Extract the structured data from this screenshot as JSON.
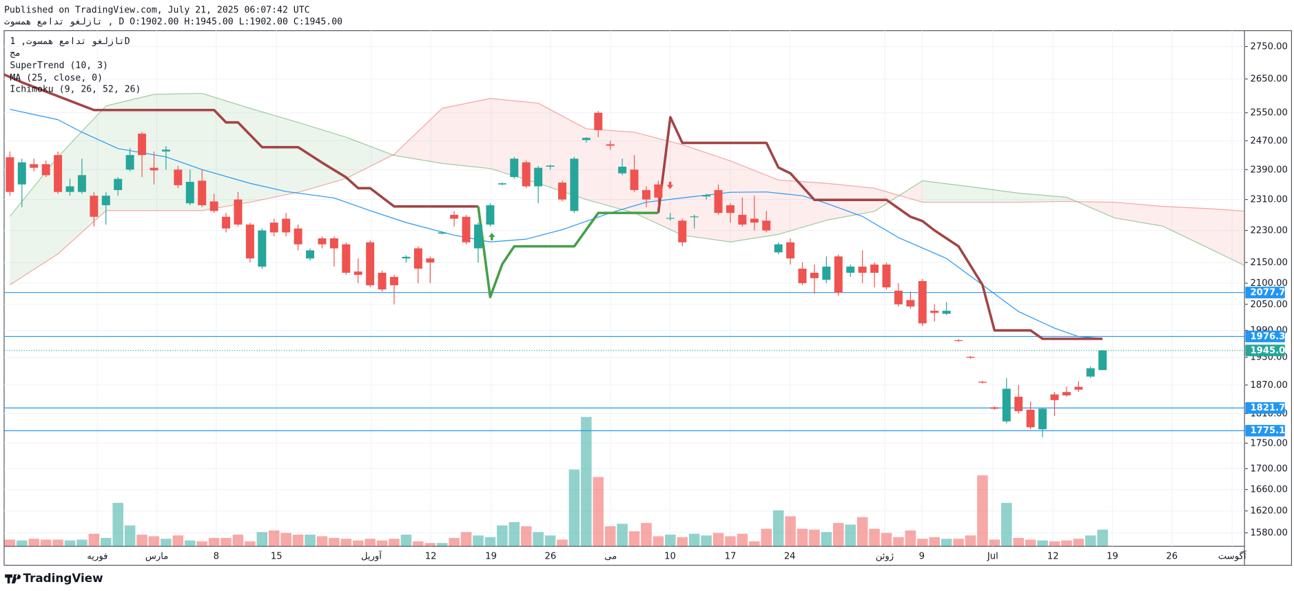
{
  "header": {
    "published": "Published on TradingView.com, July 21, 2025 06:07:42 UTC",
    "quote": "تازلغو تدامع همسوت , D O:1902.00 H:1945.00 L:1902.00 C:1945.00"
  },
  "chart_data": {
    "type": "candlestick",
    "symbol": "تازلغو تدامع همسوت, 1D",
    "log_scale": true,
    "grid": true,
    "ylim": [
      1556,
      2800
    ],
    "yticks": [
      {
        "value": 2750,
        "label": "2750.00"
      },
      {
        "value": 2650,
        "label": "2650.00"
      },
      {
        "value": 2550,
        "label": "2550.00"
      },
      {
        "value": 2470,
        "label": "2470.00"
      },
      {
        "value": 2390,
        "label": "2390.00"
      },
      {
        "value": 2310,
        "label": "2310.00"
      },
      {
        "value": 2230,
        "label": "2230.00"
      },
      {
        "value": 2150,
        "label": "2150.00"
      },
      {
        "value": 2100,
        "label": "2100.00"
      },
      {
        "value": 2050,
        "label": "2050.00"
      },
      {
        "value": 1990,
        "label": "1990.00"
      },
      {
        "value": 1930,
        "label": "1930.00"
      },
      {
        "value": 1870,
        "label": "1870.00"
      },
      {
        "value": 1810,
        "label": "1810.00"
      },
      {
        "value": 1750,
        "label": "1750.00"
      },
      {
        "value": 1700,
        "label": "1700.00"
      },
      {
        "value": 1660,
        "label": "1660.00"
      },
      {
        "value": 1620,
        "label": "1620.00"
      },
      {
        "value": 1580,
        "label": "1580.00"
      }
    ],
    "x_labels": [
      "فوریه",
      "مارس",
      "8",
      "15",
      "آوریل",
      "12",
      "19",
      "26",
      "می",
      "10",
      "17",
      "24",
      "ژوئن",
      "9",
      "Jul",
      "12",
      "19",
      "26",
      "آگوست"
    ],
    "up_color": "#26a69a",
    "down_color": "#ef5350",
    "ohlc": [
      [
        2424,
        2440,
        2320,
        2330
      ],
      [
        2350,
        2420,
        2290,
        2410
      ],
      [
        2405,
        2420,
        2385,
        2395
      ],
      [
        2405,
        2415,
        2370,
        2375
      ],
      [
        2430,
        2440,
        2325,
        2330
      ],
      [
        2330,
        2365,
        2320,
        2345
      ],
      [
        2330,
        2420,
        2325,
        2375
      ],
      [
        2320,
        2330,
        2240,
        2265
      ],
      [
        2295,
        2330,
        2245,
        2320
      ],
      [
        2335,
        2370,
        2320,
        2365
      ],
      [
        2390,
        2450,
        2385,
        2430
      ],
      [
        2490,
        2495,
        2370,
        2430
      ],
      [
        2395,
        2440,
        2350,
        2388
      ],
      [
        2440,
        2455,
        2390,
        2445
      ],
      [
        2390,
        2400,
        2340,
        2348
      ],
      [
        2300,
        2390,
        2295,
        2357
      ],
      [
        2360,
        2390,
        2290,
        2295
      ],
      [
        2305,
        2325,
        2275,
        2280
      ],
      [
        2265,
        2275,
        2225,
        2235
      ],
      [
        2310,
        2330,
        2240,
        2245
      ],
      [
        2245,
        2250,
        2150,
        2160
      ],
      [
        2140,
        2235,
        2135,
        2230
      ],
      [
        2250,
        2260,
        2215,
        2225
      ],
      [
        2260,
        2275,
        2215,
        2225
      ],
      [
        2235,
        2245,
        2180,
        2195
      ],
      [
        2160,
        2185,
        2155,
        2180
      ],
      [
        2210,
        2215,
        2185,
        2195
      ],
      [
        2210,
        2215,
        2140,
        2185
      ],
      [
        2195,
        2200,
        2120,
        2125
      ],
      [
        2128,
        2160,
        2100,
        2120
      ],
      [
        2200,
        2205,
        2090,
        2095
      ],
      [
        2125,
        2130,
        2080,
        2085
      ],
      [
        2115,
        2120,
        2050,
        2095
      ],
      [
        2160,
        2168,
        2150,
        2164
      ],
      [
        2185,
        2190,
        2100,
        2135
      ],
      [
        2160,
        2165,
        2100,
        2150
      ],
      [
        2222,
        2228,
        2220,
        2225
      ],
      [
        2270,
        2280,
        2240,
        2260
      ],
      [
        2265,
        2270,
        2195,
        2200
      ],
      [
        2185,
        2250,
        2150,
        2245
      ],
      [
        2245,
        2300,
        2240,
        2295
      ],
      [
        2350,
        2355,
        2348,
        2353
      ],
      [
        2370,
        2425,
        2365,
        2420
      ],
      [
        2410,
        2415,
        2340,
        2345
      ],
      [
        2345,
        2400,
        2300,
        2395
      ],
      [
        2398,
        2403,
        2390,
        2401
      ],
      [
        2355,
        2360,
        2305,
        2310
      ],
      [
        2280,
        2425,
        2275,
        2420
      ],
      [
        2472,
        2480,
        2465,
        2478
      ],
      [
        2550,
        2555,
        2480,
        2500
      ],
      [
        2460,
        2470,
        2445,
        2456
      ],
      [
        2380,
        2420,
        2375,
        2398
      ],
      [
        2390,
        2430,
        2330,
        2335
      ],
      [
        2335,
        2345,
        2290,
        2310
      ],
      [
        2350,
        2360,
        2290,
        2315
      ],
      [
        2260,
        2275,
        2255,
        2262
      ],
      [
        2255,
        2260,
        2190,
        2200
      ],
      [
        2264,
        2270,
        2235,
        2266
      ],
      [
        2318,
        2325,
        2310,
        2322
      ],
      [
        2335,
        2350,
        2270,
        2275
      ],
      [
        2295,
        2300,
        2250,
        2275
      ],
      [
        2270,
        2315,
        2240,
        2245
      ],
      [
        2260,
        2320,
        2230,
        2250
      ],
      [
        2255,
        2280,
        2225,
        2230
      ],
      [
        2175,
        2200,
        2170,
        2195
      ],
      [
        2200,
        2210,
        2145,
        2160
      ],
      [
        2135,
        2150,
        2095,
        2100
      ],
      [
        2125,
        2145,
        2075,
        2112
      ],
      [
        2108,
        2165,
        2100,
        2140
      ],
      [
        2165,
        2170,
        2070,
        2077
      ],
      [
        2125,
        2145,
        2115,
        2140
      ],
      [
        2140,
        2180,
        2100,
        2125
      ],
      [
        2145,
        2150,
        2090,
        2125
      ],
      [
        2145,
        2150,
        2085,
        2090
      ],
      [
        2082,
        2100,
        2045,
        2050
      ],
      [
        2060,
        2080,
        2040,
        2045
      ],
      [
        2105,
        2110,
        2000,
        2006
      ],
      [
        2035,
        2050,
        2010,
        2030
      ],
      [
        2028,
        2055,
        2025,
        2035
      ],
      [
        1968,
        1970,
        1964,
        1966
      ],
      [
        1931,
        1933,
        1927,
        1929
      ],
      [
        1877,
        1879,
        1873,
        1875
      ],
      [
        1823,
        1825,
        1818,
        1820
      ],
      [
        1794,
        1885,
        1790,
        1862
      ],
      [
        1845,
        1870,
        1810,
        1815
      ],
      [
        1818,
        1835,
        1778,
        1782
      ],
      [
        1778,
        1822,
        1762,
        1820
      ],
      [
        1850,
        1855,
        1805,
        1838
      ],
      [
        1855,
        1866,
        1845,
        1848
      ],
      [
        1866,
        1878,
        1855,
        1860
      ],
      [
        1888,
        1910,
        1885,
        1906
      ],
      [
        1902,
        1945,
        1902,
        1945
      ]
    ],
    "volume_name": "مج",
    "volume_lim": [
      0,
      170
    ],
    "volume": [
      8,
      7,
      9,
      8,
      8,
      7,
      8,
      15,
      10,
      52,
      25,
      14,
      12,
      9,
      13,
      7,
      6,
      10,
      10,
      14,
      6,
      17,
      19,
      16,
      14,
      14,
      12,
      10,
      9,
      7,
      9,
      7,
      9,
      14,
      6,
      4,
      4,
      10,
      17,
      13,
      11,
      25,
      29,
      24,
      17,
      13,
      8,
      92,
      155,
      83,
      24,
      27,
      18,
      28,
      12,
      14,
      11,
      15,
      13,
      16,
      12,
      15,
      6,
      21,
      43,
      36,
      21,
      20,
      17,
      28,
      26,
      35,
      21,
      16,
      11,
      19,
      9,
      11,
      9,
      9,
      13,
      85,
      8,
      52,
      10,
      8,
      7,
      6,
      7,
      9,
      13,
      20
    ],
    "supertrend": {
      "name": "SuperTrend (10, 3)",
      "down": {
        "color": "#a24444",
        "x": [
          -0.5,
          1,
          7,
          17,
          18,
          19,
          21,
          24,
          26,
          28,
          29,
          30,
          32,
          39,
          47,
          54,
          55,
          56,
          63,
          64,
          65,
          67,
          73,
          75,
          76,
          77,
          79,
          81,
          82,
          85,
          86,
          91
        ],
        "values": [
          2664,
          2640,
          2558,
          2558,
          2522,
          2522,
          2452,
          2452,
          2409,
          2369,
          2340,
          2340,
          2292,
          2292,
          null,
          2275,
          2537,
          2464,
          2464,
          2396,
          2380,
          2309,
          2309,
          2265,
          2254,
          2230,
          2190,
          2096,
          1990,
          1990,
          1971,
          1971
        ]
      },
      "up": {
        "color": "#43a047",
        "x": [
          39,
          40,
          41,
          42,
          47,
          49,
          54
        ],
        "values": [
          2292,
          2067,
          2146,
          2190,
          2190,
          2275,
          2275
        ]
      }
    },
    "ma": {
      "name": "MA (25, close, 0)",
      "color": "#2196f3",
      "x": [
        0,
        4,
        6,
        9,
        13,
        16,
        20,
        23,
        27,
        30,
        33,
        37,
        40,
        43,
        46,
        50,
        53,
        57,
        60,
        63,
        66,
        68,
        71,
        74,
        78,
        81,
        84,
        87,
        89,
        91
      ],
      "values": [
        2560,
        2530,
        2494,
        2448,
        2425,
        2390,
        2353,
        2331,
        2314,
        2281,
        2250,
        2218,
        2201,
        2208,
        2232,
        2275,
        2303,
        2318,
        2329,
        2330,
        2320,
        2300,
        2266,
        2212,
        2160,
        2096,
        2033,
        1995,
        1976,
        1972
      ]
    },
    "ichimoku": {
      "name": "Ichimoku (9, 26, 52, 26)",
      "a_color": "#43a047",
      "b_color": "#ef5350",
      "x": [
        0,
        4,
        8,
        12,
        16,
        20,
        24,
        28,
        32,
        36,
        40,
        44,
        48,
        52,
        56,
        60,
        64,
        68,
        72,
        76,
        80,
        84,
        88,
        92,
        96,
        100,
        103
      ],
      "span_a": [
        2266,
        2425,
        2570,
        2604,
        2607,
        2563,
        2522,
        2480,
        2429,
        2407,
        2393,
        2353,
        2310,
        2275,
        2218,
        2201,
        2220,
        2256,
        2279,
        2360,
        2344,
        2327,
        2316,
        2262,
        2241,
        2183,
        2140
      ],
      "span_b": [
        2096,
        2171,
        2281,
        2281,
        2281,
        2303,
        2329,
        2366,
        2432,
        2563,
        2592,
        2578,
        2504,
        2494,
        2459,
        2414,
        2362,
        2353,
        2340,
        2303,
        2303,
        2303,
        2305,
        2303,
        2292,
        2286,
        2279
      ]
    },
    "price_lines": [
      {
        "value": 2077.71,
        "label": "2077.71"
      },
      {
        "value": 1976.31,
        "label": "1976.31"
      },
      {
        "value": 1821.71,
        "label": "1821.71"
      },
      {
        "value": 1775.1,
        "label": "1775.10"
      }
    ],
    "price_line_color": "#2196f3",
    "last_price": {
      "value": 1945,
      "label": "1945.00"
    }
  },
  "footer": {
    "brand": "TradingView"
  }
}
